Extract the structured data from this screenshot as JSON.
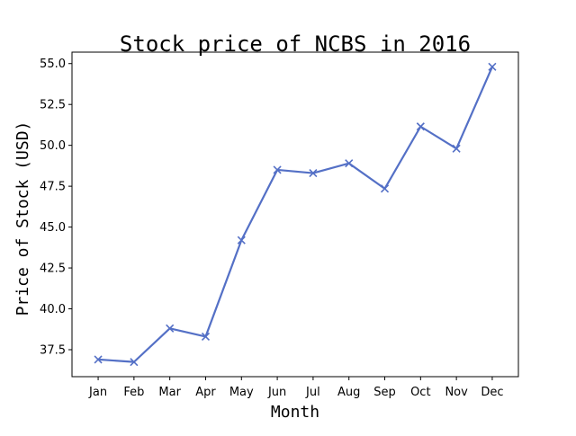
{
  "chart_data": {
    "type": "line",
    "title": "Stock price of NCBS in 2016",
    "xlabel": "Month",
    "ylabel": "Price of Stock (USD)",
    "categories": [
      "Jan",
      "Feb",
      "Mar",
      "Apr",
      "May",
      "Jun",
      "Jul",
      "Aug",
      "Sep",
      "Oct",
      "Nov",
      "Dec"
    ],
    "series": [
      {
        "values": [
          36.9,
          36.75,
          38.8,
          38.3,
          44.2,
          48.5,
          48.3,
          48.9,
          47.35,
          51.15,
          49.8,
          54.8
        ],
        "color": "#5470c6",
        "marker": "x"
      }
    ],
    "yticks": [
      "37.5",
      "40.0",
      "42.5",
      "45.0",
      "47.5",
      "50.0",
      "52.5",
      "55.0"
    ],
    "ylim": [
      35.85,
      55.7
    ],
    "grid": false,
    "legend": "none"
  }
}
